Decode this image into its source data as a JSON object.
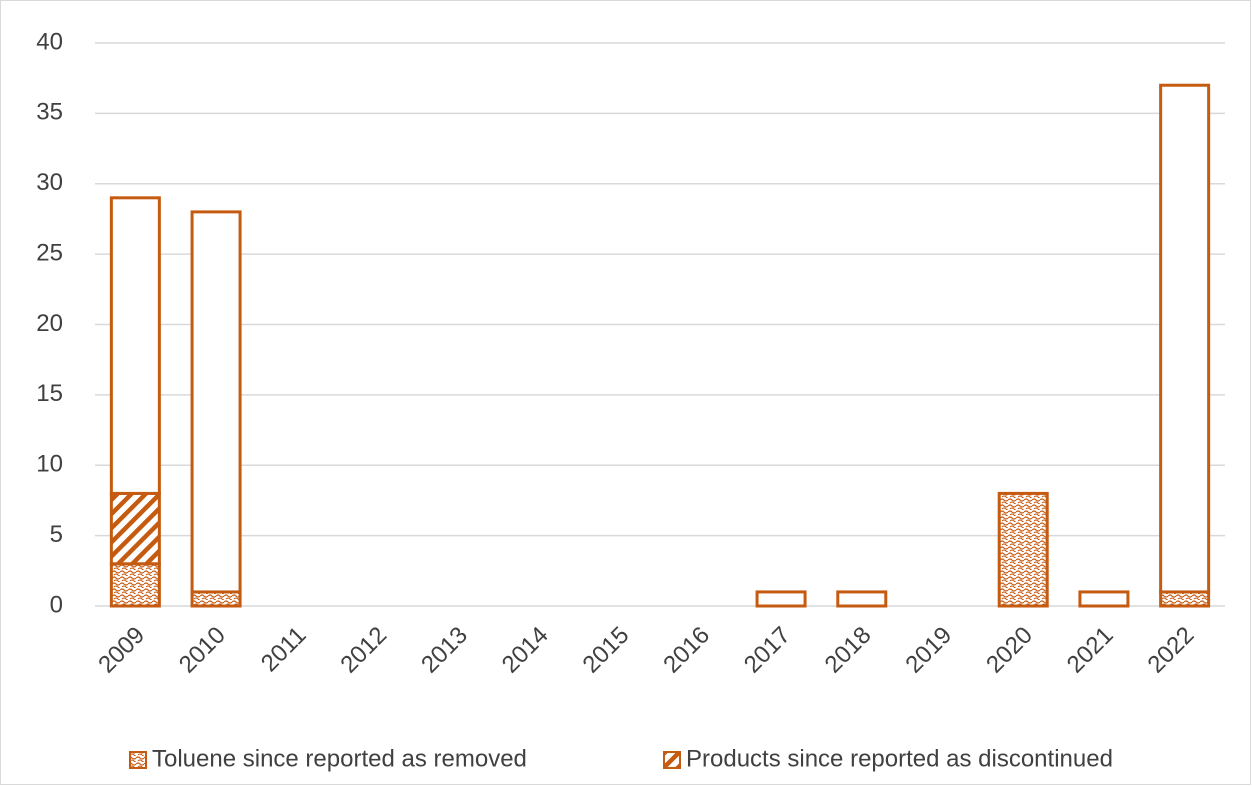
{
  "chart_data": {
    "type": "stacked_bar",
    "categories": [
      "2009",
      "2010",
      "2011",
      "2012",
      "2013",
      "2014",
      "2015",
      "2016",
      "2017",
      "2018",
      "2019",
      "2020",
      "2021",
      "2022"
    ],
    "series": [
      {
        "name": "Toluene since reported as removed",
        "color": "#c55a11",
        "pattern": "dots",
        "values": [
          3,
          1,
          0,
          0,
          0,
          0,
          0,
          0,
          0,
          0,
          0,
          8,
          0,
          1
        ]
      },
      {
        "name": "Products since reported as discontinued",
        "color": "#c55a11",
        "pattern": "hatch",
        "values": [
          5,
          0,
          0,
          0,
          0,
          0,
          0,
          0,
          0,
          0,
          0,
          0,
          0,
          0
        ]
      },
      {
        "color": "#c55a11",
        "pattern": "none",
        "values": [
          21,
          27,
          0,
          0,
          0,
          0,
          0,
          0,
          1,
          1,
          0,
          0,
          1,
          36
        ]
      }
    ],
    "ylim": [
      0,
      40
    ],
    "yticks": [
      0,
      5,
      10,
      15,
      20,
      25,
      30,
      35,
      40
    ],
    "grid": true,
    "legend": "bottom"
  }
}
